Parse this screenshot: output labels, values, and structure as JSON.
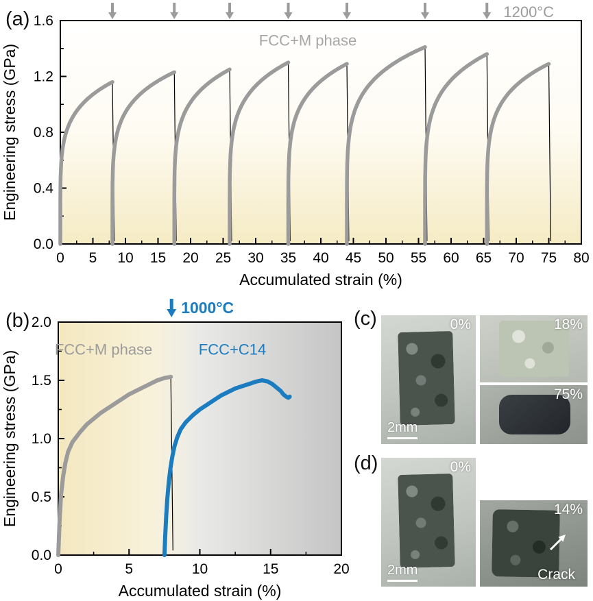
{
  "figure": {
    "panels": {
      "a": {
        "label": "(a)"
      },
      "b": {
        "label": "(b)"
      },
      "c": {
        "label": "(c)"
      },
      "d": {
        "label": "(d)"
      }
    },
    "photos": {
      "c": {
        "left": {
          "strain_label": "0%",
          "scale_bar": "2mm"
        },
        "top_right": {
          "strain_label": "18%"
        },
        "bottom_right": {
          "strain_label": "75%"
        }
      },
      "d": {
        "left": {
          "strain_label": "0%",
          "scale_bar": "2mm"
        },
        "right": {
          "strain_label": "14%",
          "crack_label": "Crack"
        }
      }
    }
  },
  "chart_data": [
    {
      "panel": "a",
      "type": "line",
      "xlabel": "Accumulated strain (%)",
      "ylabel": "Engineering stress (GPa)",
      "xlim": [
        0,
        80
      ],
      "ylim": [
        0,
        1.6
      ],
      "xticks": [
        0,
        5,
        10,
        15,
        20,
        25,
        30,
        35,
        40,
        45,
        50,
        55,
        60,
        65,
        70,
        75,
        80
      ],
      "yticks": [
        0,
        0.4,
        0.8,
        1.2,
        1.6
      ],
      "temperature_label": "1200°C",
      "phase_label": "FCC+M phase",
      "series_color": "#9b9b9b",
      "arrow_color": "#9b9b9b",
      "arrow_strains": [
        8,
        17.5,
        26,
        35,
        44,
        56,
        65.5
      ],
      "compression_cycles": [
        {
          "start_strain": 0,
          "end_strain": 8,
          "peak_stress_gpa": 1.16
        },
        {
          "start_strain": 8,
          "end_strain": 17.5,
          "peak_stress_gpa": 1.23
        },
        {
          "start_strain": 17.5,
          "end_strain": 26,
          "peak_stress_gpa": 1.25
        },
        {
          "start_strain": 26,
          "end_strain": 35,
          "peak_stress_gpa": 1.3
        },
        {
          "start_strain": 35,
          "end_strain": 44,
          "peak_stress_gpa": 1.29
        },
        {
          "start_strain": 44,
          "end_strain": 56,
          "peak_stress_gpa": 1.41
        },
        {
          "start_strain": 56,
          "end_strain": 65.5,
          "peak_stress_gpa": 1.36
        },
        {
          "start_strain": 65.5,
          "end_strain": 75,
          "peak_stress_gpa": 1.29
        }
      ]
    },
    {
      "panel": "b",
      "type": "line",
      "xlabel": "Accumulated strain (%)",
      "ylabel": "Engineering stress (GPa)",
      "xlim": [
        0,
        20
      ],
      "ylim": [
        0,
        2
      ],
      "xticks": [
        0,
        5,
        10,
        15,
        20
      ],
      "yticks": [
        0,
        0.5,
        1,
        1.5,
        2
      ],
      "temperature_label": "1000°C",
      "temperature_color": "#1b7cc0",
      "temperature_arrow_strain": 8,
      "phase_boundary_strain": 8.3,
      "region_labels": [
        {
          "text": "FCC+M phase",
          "color": "#9b9b9b",
          "x": 3.2,
          "y": 1.72
        },
        {
          "text": "FCC+C14",
          "color": "#1b7cc0",
          "x": 12.3,
          "y": 1.72
        }
      ],
      "drop_line": [
        [
          7.95,
          1.53
        ],
        [
          8.1,
          0.04
        ]
      ],
      "series": [
        {
          "name": "FCC+M phase",
          "color": "#9b9b9b",
          "points": [
            [
              0,
              0
            ],
            [
              0.1,
              0.32
            ],
            [
              0.2,
              0.52
            ],
            [
              0.35,
              0.68
            ],
            [
              0.5,
              0.79
            ],
            [
              0.7,
              0.89
            ],
            [
              1.0,
              0.97
            ],
            [
              1.5,
              1.05
            ],
            [
              2,
              1.12
            ],
            [
              2.5,
              1.17
            ],
            [
              3,
              1.22
            ],
            [
              3.5,
              1.26
            ],
            [
              4,
              1.3
            ],
            [
              4.5,
              1.34
            ],
            [
              5,
              1.38
            ],
            [
              5.5,
              1.41
            ],
            [
              6,
              1.44
            ],
            [
              6.5,
              1.47
            ],
            [
              7,
              1.5
            ],
            [
              7.5,
              1.52
            ],
            [
              7.95,
              1.53
            ]
          ]
        },
        {
          "name": "FCC+C14",
          "color": "#1b7cc0",
          "points": [
            [
              7.5,
              0
            ],
            [
              7.55,
              0.15
            ],
            [
              7.62,
              0.33
            ],
            [
              7.7,
              0.48
            ],
            [
              7.8,
              0.62
            ],
            [
              7.92,
              0.74
            ],
            [
              8.05,
              0.84
            ],
            [
              8.2,
              0.93
            ],
            [
              8.4,
              1.01
            ],
            [
              8.65,
              1.08
            ],
            [
              9,
              1.14
            ],
            [
              9.5,
              1.2
            ],
            [
              10,
              1.25
            ],
            [
              10.5,
              1.29
            ],
            [
              11,
              1.33
            ],
            [
              11.5,
              1.37
            ],
            [
              12,
              1.4
            ],
            [
              12.5,
              1.43
            ],
            [
              13,
              1.45
            ],
            [
              13.5,
              1.47
            ],
            [
              14,
              1.49
            ],
            [
              14.4,
              1.5
            ],
            [
              14.8,
              1.49
            ],
            [
              15.1,
              1.47
            ],
            [
              15.4,
              1.44
            ],
            [
              15.7,
              1.41
            ],
            [
              15.9,
              1.38
            ],
            [
              16.1,
              1.36
            ],
            [
              16.25,
              1.35
            ],
            [
              16.35,
              1.36
            ]
          ]
        }
      ]
    }
  ]
}
